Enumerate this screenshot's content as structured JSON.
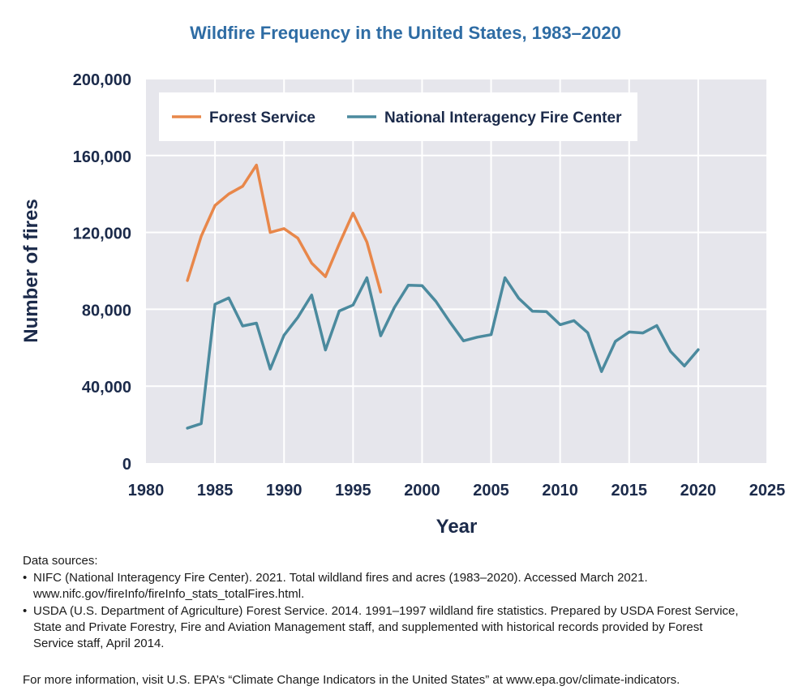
{
  "chart_data": {
    "type": "line",
    "title": "Wildfire Frequency in the United States, 1983–2020",
    "xlabel": "Year",
    "ylabel": "Number of fires",
    "xlim": [
      1980,
      2025
    ],
    "ylim": [
      0,
      200000
    ],
    "x_ticks": [
      1980,
      1985,
      1990,
      1995,
      2000,
      2005,
      2010,
      2015,
      2020,
      2025
    ],
    "y_ticks": [
      0,
      40000,
      80000,
      120000,
      160000,
      200000
    ],
    "y_tick_labels": [
      "0",
      "40,000",
      "80,000",
      "120,000",
      "160,000",
      "200,000"
    ],
    "grid": true,
    "legend_position": "top-left",
    "series": [
      {
        "name": "Forest Service",
        "color": "#e8874a",
        "x": [
          1983,
          1984,
          1985,
          1986,
          1987,
          1988,
          1989,
          1990,
          1991,
          1992,
          1993,
          1994,
          1995,
          1996,
          1997
        ],
        "values": [
          95000,
          118000,
          134000,
          140000,
          144000,
          155000,
          120000,
          122000,
          117000,
          104000,
          97000,
          114000,
          130000,
          115000,
          89000
        ]
      },
      {
        "name": "National Interagency Fire Center",
        "color": "#4b8a9e",
        "x": [
          1983,
          1984,
          1985,
          1986,
          1987,
          1988,
          1989,
          1990,
          1991,
          1992,
          1993,
          1994,
          1995,
          1996,
          1997,
          1998,
          1999,
          2000,
          2001,
          2002,
          2003,
          2004,
          2005,
          2006,
          2007,
          2008,
          2009,
          2010,
          2011,
          2012,
          2013,
          2014,
          2015,
          2016,
          2017,
          2018,
          2019,
          2020
        ],
        "values": [
          18200,
          20500,
          82600,
          85900,
          71300,
          72800,
          48900,
          66500,
          75800,
          87400,
          58800,
          79100,
          82200,
          96400,
          66200,
          81000,
          92500,
          92300,
          84100,
          73500,
          63600,
          65500,
          66800,
          96400,
          85700,
          79000,
          78800,
          72000,
          74100,
          67800,
          47600,
          63300,
          68200,
          67700,
          71500,
          58100,
          50500,
          59000
        ]
      }
    ]
  },
  "footer": {
    "sources_heading": "Data sources:",
    "sources": [
      {
        "line1": "NIFC (National Interagency Fire Center). 2021. Total wildland fires and acres (1983–2020). Accessed March 2021.",
        "line2": "www.nifc.gov/fireInfo/fireInfo_stats_totalFires.html."
      },
      {
        "line1": "USDA (U.S. Department of Agriculture) Forest Service. 2014. 1991–1997 wildland fire statistics. Prepared by USDA Forest Service,",
        "line2": "State and Private Forestry, Fire and Aviation Management staff, and supplemented with historical records provided by Forest",
        "line3": "Service staff, April 2014."
      }
    ],
    "more_info": "For more information, visit U.S. EPA’s “Climate Change Indicators in the United States” at www.epa.gov/climate-indicators."
  },
  "colors": {
    "plot_background": "#e6e6ec",
    "grid": "#ffffff",
    "axis_text": "#1b2a4a",
    "title": "#2e6ca4"
  }
}
